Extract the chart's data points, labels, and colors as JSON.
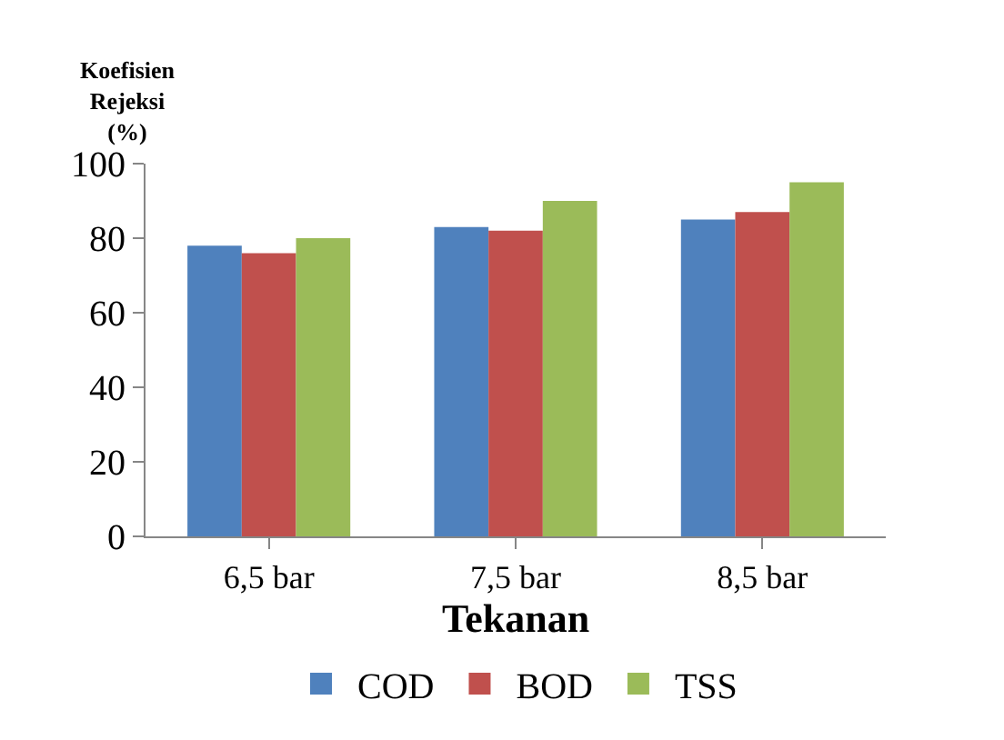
{
  "chart_data": {
    "type": "bar",
    "ylabel": "Koefisien\nRejeksi\n(%)",
    "xlabel": "Tekanan",
    "categories": [
      "6,5 bar",
      "7,5 bar",
      "8,5 bar"
    ],
    "series": [
      {
        "name": "COD",
        "color": "#4f81bd",
        "values": [
          78,
          83,
          85
        ]
      },
      {
        "name": "BOD",
        "color": "#c0504d",
        "values": [
          76,
          82,
          87
        ]
      },
      {
        "name": "TSS",
        "color": "#9bbb59",
        "values": [
          80,
          90,
          95
        ]
      }
    ],
    "ylim": [
      0,
      100
    ],
    "yticks": [
      0,
      20,
      40,
      60,
      80,
      100
    ],
    "legend": "bottom"
  }
}
